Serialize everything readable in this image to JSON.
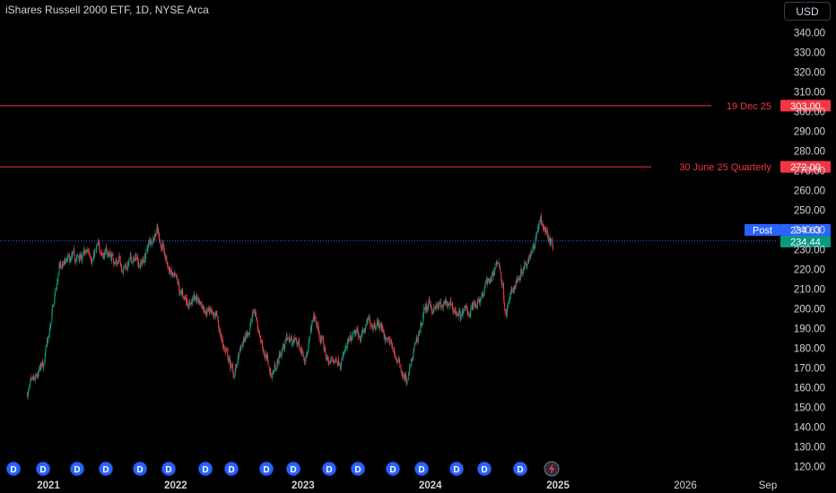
{
  "header": {
    "symbol_title": "iShares Russell 2000 ETF, 1D, NYSE Arca",
    "currency_button": "USD"
  },
  "chart_data": {
    "type": "candlestick",
    "title": "iShares Russell 2000 ETF, 1D, NYSE Arca",
    "x_tick_labels": [
      "2021",
      "2022",
      "2023",
      "2024",
      "2025",
      "2026",
      "Sep"
    ],
    "y_tick_labels": [
      "120.00",
      "130.00",
      "140.00",
      "150.00",
      "160.00",
      "170.00",
      "180.00",
      "190.00",
      "200.00",
      "210.00",
      "220.00",
      "230.00",
      "240.00",
      "250.00",
      "260.00",
      "270.00",
      "280.00",
      "290.00",
      "300.00",
      "310.00",
      "320.00",
      "330.00",
      "340.00"
    ],
    "ylim": [
      116,
      344
    ],
    "grid": false,
    "colors": {
      "up": "#089981",
      "down": "#f23645",
      "level": "#f23645",
      "post": "#2962ff"
    },
    "approx_close_path": [
      [
        "2020-11-01",
        157
      ],
      [
        "2020-12-01",
        162
      ],
      [
        "2021-01-01",
        183
      ],
      [
        "2021-02-01",
        220
      ],
      [
        "2021-03-01",
        222
      ],
      [
        "2021-04-01",
        225
      ],
      [
        "2021-06-01",
        230
      ],
      [
        "2021-08-01",
        223
      ],
      [
        "2021-10-01",
        225
      ],
      [
        "2021-11-08",
        243
      ],
      [
        "2021-12-01",
        225
      ],
      [
        "2022-01-15",
        205
      ],
      [
        "2022-03-01",
        205
      ],
      [
        "2022-04-15",
        200
      ],
      [
        "2022-06-15",
        166
      ],
      [
        "2022-08-15",
        199
      ],
      [
        "2022-10-01",
        166
      ],
      [
        "2022-11-15",
        185
      ],
      [
        "2023-01-15",
        179
      ],
      [
        "2023-02-01",
        195
      ],
      [
        "2023-03-15",
        172
      ],
      [
        "2023-05-01",
        178
      ],
      [
        "2023-07-31",
        196
      ],
      [
        "2023-10-27",
        163
      ],
      [
        "2023-12-15",
        200
      ],
      [
        "2024-02-01",
        200
      ],
      [
        "2024-04-15",
        197
      ],
      [
        "2024-07-16",
        223
      ],
      [
        "2024-08-05",
        199
      ],
      [
        "2024-09-15",
        220
      ],
      [
        "2024-11-11",
        243
      ],
      [
        "2024-12-01",
        238
      ],
      [
        "2024-12-17",
        232
      ]
    ],
    "levels": [
      {
        "label": "19 Dec 25",
        "price": 303.0,
        "tag": "303.00"
      },
      {
        "label": "30 June 25 Quarterly",
        "price": 272.0,
        "tag": "272.00"
      }
    ],
    "price_tags": {
      "post_label": "Post",
      "post_price": "234.63",
      "last_price": "234.44",
      "last_value": 234.44
    },
    "dividend_markers": [
      "D",
      "D",
      "D",
      "D",
      "D",
      "D",
      "D",
      "D",
      "D",
      "D",
      "D",
      "D",
      "D",
      "D",
      "D",
      "D",
      "D"
    ],
    "upcoming_event_icon": "lightning-icon"
  }
}
